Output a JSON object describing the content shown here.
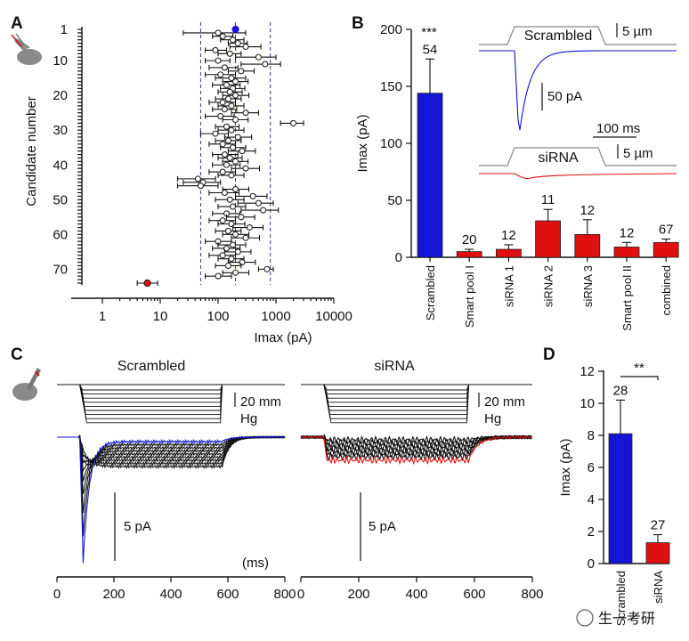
{
  "panels": {
    "a": "A",
    "b": "B",
    "c": "C",
    "d": "D"
  },
  "panel_a": {
    "ylabel": "Candidate number",
    "xlabel": "Imax (pA)",
    "y_ticks": [
      "1",
      "10",
      "20",
      "30",
      "40",
      "50",
      "60",
      "70"
    ],
    "x_ticks": [
      "1",
      "10",
      "100",
      "1000",
      "10000"
    ]
  },
  "panel_b": {
    "ylabel": "Imax (pA)",
    "y_ticks": [
      "0",
      "50",
      "100",
      "150",
      "200"
    ],
    "significance": "***",
    "inset": {
      "scrambled_label": "Scrambled",
      "sirna_label": "siRNA",
      "scale_um_top": "5 µm",
      "scale_um_bottom": "5 µm",
      "scale_pa": "50 pA",
      "scale_ms": "100 ms"
    }
  },
  "panel_c": {
    "left_title": "Scrambled",
    "right_title": "siRNA",
    "scale_mmhg_line1": "20 mm",
    "scale_mmhg_line2": "Hg",
    "scale_pa": "5 pA",
    "x_unit": "(ms)",
    "x_ticks": [
      "0",
      "200",
      "400",
      "600",
      "800"
    ]
  },
  "panel_d": {
    "ylabel": "Imax (pA)",
    "y_ticks": [
      "0",
      "2",
      "4",
      "6",
      "8",
      "10",
      "12"
    ],
    "significance": "**"
  },
  "watermark": "生一考研",
  "colors": {
    "scrambled": "#1515d6",
    "sirna": "#e01010",
    "dashed": "#2b3a8f",
    "trace": "#111111"
  },
  "chart_data": [
    {
      "type": "scatter",
      "panel": "A",
      "xlabel": "Imax (pA)",
      "ylabel": "Candidate number",
      "xscale": "log",
      "xlim": [
        1,
        10000
      ],
      "ylim": [
        1,
        74
      ],
      "reference_lines": [
        50,
        200,
        800
      ],
      "scrambled_point": {
        "candidate": 1,
        "imax": 200,
        "color": "#1515d6"
      },
      "sirna_point": {
        "candidate": 74,
        "imax": 6,
        "color": "#e01010"
      },
      "candidates": [
        {
          "c": 2,
          "m": 100,
          "lo": 25,
          "hi": 300
        },
        {
          "c": 3,
          "m": 120,
          "lo": 80,
          "hi": 180
        },
        {
          "c": 4,
          "m": 180,
          "lo": 110,
          "hi": 280
        },
        {
          "c": 5,
          "m": 220,
          "lo": 150,
          "hi": 320
        },
        {
          "c": 6,
          "m": 300,
          "lo": 160,
          "hi": 550
        },
        {
          "c": 7,
          "m": 90,
          "lo": 60,
          "hi": 140
        },
        {
          "c": 8,
          "m": 160,
          "lo": 100,
          "hi": 250
        },
        {
          "c": 9,
          "m": 500,
          "lo": 200,
          "hi": 1000
        },
        {
          "c": 10,
          "m": 100,
          "lo": 60,
          "hi": 160
        },
        {
          "c": 11,
          "m": 650,
          "lo": 250,
          "hi": 1200
        },
        {
          "c": 12,
          "m": 130,
          "lo": 70,
          "hi": 220
        },
        {
          "c": 13,
          "m": 250,
          "lo": 150,
          "hi": 420
        },
        {
          "c": 14,
          "m": 110,
          "lo": 60,
          "hi": 200
        },
        {
          "c": 15,
          "m": 170,
          "lo": 90,
          "hi": 300
        },
        {
          "c": 16,
          "m": 200,
          "lo": 120,
          "hi": 330
        },
        {
          "c": 17,
          "m": 140,
          "lo": 80,
          "hi": 240
        },
        {
          "c": 18,
          "m": 180,
          "lo": 110,
          "hi": 290
        },
        {
          "c": 19,
          "m": 160,
          "lo": 100,
          "hi": 260
        },
        {
          "c": 20,
          "m": 200,
          "lo": 120,
          "hi": 340
        },
        {
          "c": 21,
          "m": 150,
          "lo": 90,
          "hi": 250
        },
        {
          "c": 22,
          "m": 120,
          "lo": 70,
          "hi": 200
        },
        {
          "c": 23,
          "m": 170,
          "lo": 100,
          "hi": 280
        },
        {
          "c": 24,
          "m": 130,
          "lo": 80,
          "hi": 210
        },
        {
          "c": 25,
          "m": 300,
          "lo": 170,
          "hi": 500
        },
        {
          "c": 26,
          "m": 110,
          "lo": 60,
          "hi": 190
        },
        {
          "c": 27,
          "m": 200,
          "lo": 120,
          "hi": 330
        },
        {
          "c": 28,
          "m": 2000,
          "lo": 1200,
          "hi": 3000
        },
        {
          "c": 29,
          "m": 140,
          "lo": 90,
          "hi": 230
        },
        {
          "c": 30,
          "m": 170,
          "lo": 100,
          "hi": 280
        },
        {
          "c": 31,
          "m": 90,
          "lo": 50,
          "hi": 150
        },
        {
          "c": 32,
          "m": 220,
          "lo": 130,
          "hi": 380
        },
        {
          "c": 33,
          "m": 150,
          "lo": 90,
          "hi": 250
        },
        {
          "c": 34,
          "m": 120,
          "lo": 70,
          "hi": 200
        },
        {
          "c": 35,
          "m": 180,
          "lo": 110,
          "hi": 300
        },
        {
          "c": 36,
          "m": 260,
          "lo": 150,
          "hi": 440
        },
        {
          "c": 37,
          "m": 130,
          "lo": 80,
          "hi": 220
        },
        {
          "c": 38,
          "m": 160,
          "lo": 100,
          "hi": 260
        },
        {
          "c": 39,
          "m": 200,
          "lo": 120,
          "hi": 330
        },
        {
          "c": 40,
          "m": 140,
          "lo": 80,
          "hi": 240
        },
        {
          "c": 41,
          "m": 300,
          "lo": 170,
          "hi": 520
        },
        {
          "c": 42,
          "m": 120,
          "lo": 70,
          "hi": 200
        },
        {
          "c": 43,
          "m": 170,
          "lo": 100,
          "hi": 280
        },
        {
          "c": 44,
          "m": 45,
          "lo": 20,
          "hi": 90
        },
        {
          "c": 45,
          "m": 55,
          "lo": 25,
          "hi": 110
        },
        {
          "c": 46,
          "m": 50,
          "lo": 20,
          "hi": 100
        },
        {
          "c": 47,
          "m": 200,
          "lo": 120,
          "hi": 340
        },
        {
          "c": 48,
          "m": 130,
          "lo": 70,
          "hi": 230
        },
        {
          "c": 49,
          "m": 400,
          "lo": 200,
          "hi": 700
        },
        {
          "c": 50,
          "m": 160,
          "lo": 90,
          "hi": 280
        },
        {
          "c": 51,
          "m": 500,
          "lo": 220,
          "hi": 900
        },
        {
          "c": 52,
          "m": 180,
          "lo": 100,
          "hi": 300
        },
        {
          "c": 53,
          "m": 600,
          "lo": 250,
          "hi": 1100
        },
        {
          "c": 54,
          "m": 140,
          "lo": 80,
          "hi": 240
        },
        {
          "c": 55,
          "m": 250,
          "lo": 140,
          "hi": 430
        },
        {
          "c": 56,
          "m": 120,
          "lo": 70,
          "hi": 200
        },
        {
          "c": 57,
          "m": 170,
          "lo": 100,
          "hi": 290
        },
        {
          "c": 58,
          "m": 350,
          "lo": 180,
          "hi": 600
        },
        {
          "c": 59,
          "m": 150,
          "lo": 90,
          "hi": 250
        },
        {
          "c": 60,
          "m": 200,
          "lo": 120,
          "hi": 340
        },
        {
          "c": 61,
          "m": 300,
          "lo": 170,
          "hi": 520
        },
        {
          "c": 62,
          "m": 100,
          "lo": 60,
          "hi": 170
        },
        {
          "c": 63,
          "m": 180,
          "lo": 100,
          "hi": 300
        },
        {
          "c": 64,
          "m": 140,
          "lo": 80,
          "hi": 240
        },
        {
          "c": 65,
          "m": 220,
          "lo": 130,
          "hi": 370
        },
        {
          "c": 66,
          "m": 120,
          "lo": 70,
          "hi": 200
        },
        {
          "c": 67,
          "m": 170,
          "lo": 100,
          "hi": 280
        },
        {
          "c": 68,
          "m": 260,
          "lo": 150,
          "hi": 440
        },
        {
          "c": 69,
          "m": 150,
          "lo": 90,
          "hi": 250
        },
        {
          "c": 70,
          "m": 700,
          "lo": 500,
          "hi": 900
        },
        {
          "c": 71,
          "m": 200,
          "lo": 120,
          "hi": 340
        },
        {
          "c": 72,
          "m": 100,
          "lo": 60,
          "hi": 170
        }
      ]
    },
    {
      "type": "bar",
      "panel": "B",
      "ylabel": "Imax (pA)",
      "ylim": [
        0,
        200
      ],
      "categories": [
        "Scrambled",
        "Smart pool I",
        "siRNA 1",
        "siRNA 2",
        "siRNA 3",
        "Smart pool II",
        "combined"
      ],
      "values": [
        144,
        5,
        7,
        32,
        20,
        9,
        13
      ],
      "errors": [
        30,
        2,
        4,
        10,
        13,
        4,
        3
      ],
      "n": [
        "54",
        "20",
        "12",
        "11",
        "12",
        "12",
        "67"
      ],
      "colors": [
        "#1515d6",
        "#e01010",
        "#e01010",
        "#e01010",
        "#e01010",
        "#e01010",
        "#e01010"
      ]
    },
    {
      "type": "line",
      "panel": "C",
      "xlabel": "(ms)",
      "xlim": [
        0,
        800
      ],
      "series": [
        {
          "name": "Scrambled",
          "stimulus_start_ms": 80,
          "stimulus_end_ms": 580,
          "pressure_steps": 9,
          "peak_pa": -10.0,
          "steady_pa": -1.0
        },
        {
          "name": "siRNA",
          "stimulus_start_ms": 80,
          "stimulus_end_ms": 580,
          "pressure_steps": 9,
          "peak_pa": -1.3,
          "steady_pa": -1.3
        }
      ]
    },
    {
      "type": "bar",
      "panel": "D",
      "ylabel": "Imax (pA)",
      "ylim": [
        0,
        12
      ],
      "categories": [
        "Scrambled",
        "siRNA"
      ],
      "values": [
        8.1,
        1.3
      ],
      "errors": [
        2.1,
        0.5
      ],
      "n": [
        "28",
        "27"
      ],
      "colors": [
        "#1515d6",
        "#e01010"
      ],
      "significance": "**"
    }
  ]
}
